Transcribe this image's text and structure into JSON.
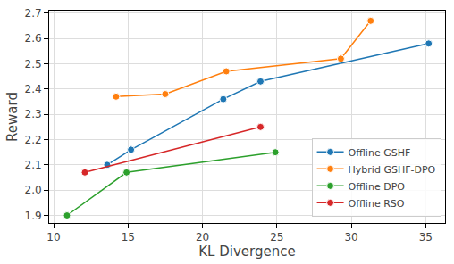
{
  "chart_data": {
    "type": "line",
    "x_label": "KL Divergence",
    "y_label": "Reward",
    "series": [
      {
        "name": "Offline GSHF",
        "color": "#1f77b4",
        "marker": "circle",
        "x": [
          13.6,
          15.2,
          21.4,
          23.9,
          35.2
        ],
        "values": [
          2.1,
          2.16,
          2.36,
          2.43,
          2.58
        ]
      },
      {
        "name": "Hybrid GSHF-DPO",
        "color": "#ff7f0e",
        "marker": "circle",
        "x": [
          14.2,
          17.5,
          21.6,
          29.3,
          31.3
        ],
        "values": [
          2.37,
          2.38,
          2.47,
          2.52,
          2.67
        ]
      },
      {
        "name": "Offline DPO",
        "color": "#2ca02c",
        "marker": "circle",
        "x": [
          10.9,
          14.9,
          24.9
        ],
        "values": [
          1.9,
          2.07,
          2.15
        ]
      },
      {
        "name": "Offline RSO",
        "color": "#d62728",
        "marker": "circle",
        "x": [
          12.1,
          23.9
        ],
        "values": [
          2.07,
          2.25
        ]
      }
    ],
    "xlim": [
      9.7,
      36.3
    ],
    "xticks": [
      10,
      15,
      20,
      25,
      30,
      35
    ],
    "ylim": [
      1.87,
      2.71
    ],
    "yticks": [
      1.9,
      {
        "value": 2,
        "label": "2.0"
      },
      2.1,
      2.2,
      2.3,
      2.4,
      2.5,
      2.6,
      2.7
    ],
    "grid": true,
    "legend": "lower right"
  }
}
